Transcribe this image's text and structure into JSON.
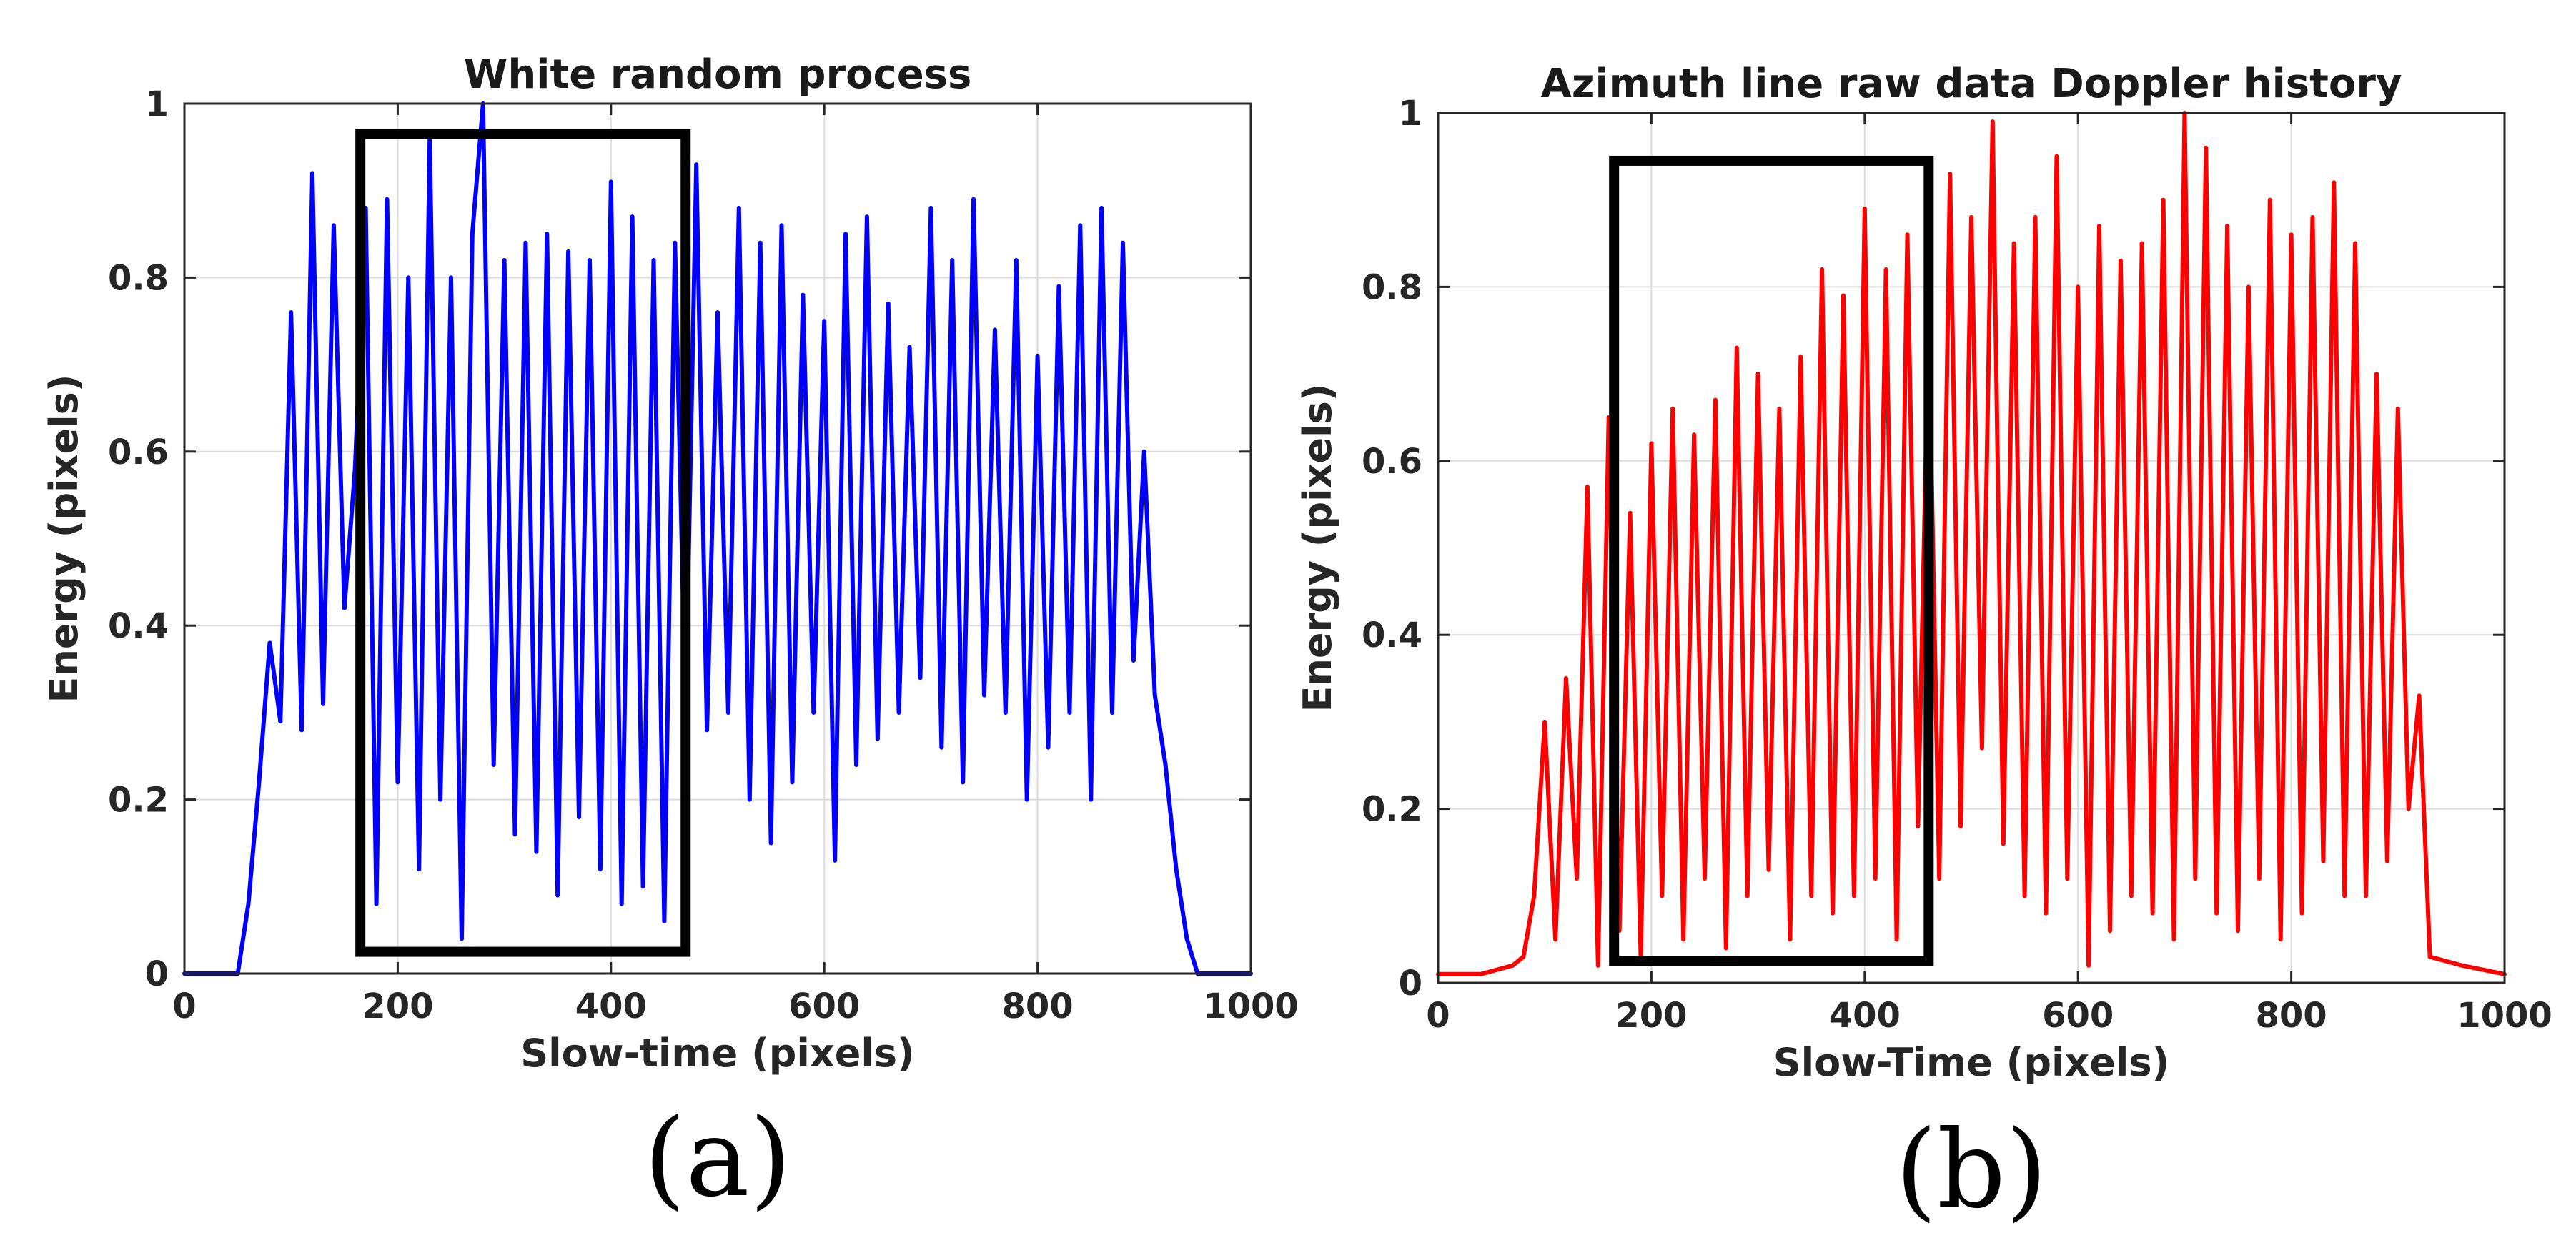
{
  "chart_data": [
    {
      "type": "line",
      "panel_label": "(a)",
      "title": "White random process",
      "xlabel": "Slow-time (pixels)",
      "ylabel": "Energy (pixels)",
      "xlim": [
        0,
        1000
      ],
      "ylim": [
        0,
        1
      ],
      "xticks": [
        0,
        200,
        400,
        600,
        800,
        1000
      ],
      "yticks": [
        0,
        0.2,
        0.4,
        0.6,
        0.8,
        1
      ],
      "ytick_labels": [
        "0",
        "0.2",
        "0.4",
        "0.6",
        "0.8",
        "1"
      ],
      "grid": true,
      "series": [
        {
          "name": "White random process",
          "color": "#0000ff",
          "x": [
            0,
            50,
            60,
            70,
            80,
            90,
            100,
            110,
            120,
            130,
            140,
            150,
            160,
            170,
            180,
            190,
            200,
            210,
            220,
            230,
            240,
            250,
            260,
            270,
            280,
            290,
            300,
            310,
            320,
            330,
            340,
            350,
            360,
            370,
            380,
            390,
            400,
            410,
            420,
            430,
            440,
            450,
            460,
            470,
            480,
            490,
            500,
            510,
            520,
            530,
            540,
            550,
            560,
            570,
            580,
            590,
            600,
            610,
            620,
            630,
            640,
            650,
            660,
            670,
            680,
            690,
            700,
            710,
            720,
            730,
            740,
            750,
            760,
            770,
            780,
            790,
            800,
            810,
            820,
            830,
            840,
            850,
            860,
            870,
            880,
            890,
            900,
            910,
            920,
            930,
            940,
            950,
            1000
          ],
          "y": [
            0,
            0,
            0.08,
            0.22,
            0.38,
            0.29,
            0.76,
            0.28,
            0.92,
            0.31,
            0.86,
            0.42,
            0.58,
            0.88,
            0.08,
            0.89,
            0.22,
            0.8,
            0.12,
            0.96,
            0.2,
            0.8,
            0.04,
            0.85,
            1.0,
            0.24,
            0.82,
            0.16,
            0.84,
            0.14,
            0.85,
            0.09,
            0.83,
            0.18,
            0.82,
            0.12,
            0.91,
            0.08,
            0.87,
            0.1,
            0.82,
            0.06,
            0.84,
            0.3,
            0.93,
            0.28,
            0.76,
            0.3,
            0.88,
            0.2,
            0.84,
            0.15,
            0.86,
            0.22,
            0.78,
            0.3,
            0.75,
            0.13,
            0.85,
            0.24,
            0.87,
            0.27,
            0.77,
            0.3,
            0.72,
            0.34,
            0.88,
            0.26,
            0.82,
            0.22,
            0.89,
            0.32,
            0.74,
            0.3,
            0.82,
            0.2,
            0.71,
            0.26,
            0.79,
            0.3,
            0.86,
            0.2,
            0.88,
            0.3,
            0.84,
            0.36,
            0.6,
            0.32,
            0.24,
            0.12,
            0.04,
            0,
            0
          ]
        }
      ],
      "highlight_box": {
        "x": [
          165,
          470
        ],
        "y": [
          0.025,
          0.965
        ]
      }
    },
    {
      "type": "line",
      "panel_label": "(b)",
      "title": "Azimuth line raw data Doppler history",
      "xlabel": "Slow-Time (pixels)",
      "ylabel": "Energy (pixels)",
      "xlim": [
        0,
        1000
      ],
      "ylim": [
        0,
        1
      ],
      "xticks": [
        0,
        200,
        400,
        600,
        800,
        1000
      ],
      "yticks": [
        0,
        0.2,
        0.4,
        0.6,
        0.8,
        1
      ],
      "ytick_labels": [
        "0",
        "0.2",
        "0.4",
        "0.6",
        "0.8",
        "1"
      ],
      "grid": true,
      "series": [
        {
          "name": "Azimuth line raw data Doppler history",
          "color": "#ff0000",
          "x": [
            0,
            40,
            70,
            80,
            90,
            100,
            110,
            120,
            130,
            140,
            150,
            160,
            170,
            180,
            190,
            200,
            210,
            220,
            230,
            240,
            250,
            260,
            270,
            280,
            290,
            300,
            310,
            320,
            330,
            340,
            350,
            360,
            370,
            380,
            390,
            400,
            410,
            420,
            430,
            440,
            450,
            460,
            470,
            480,
            490,
            500,
            510,
            520,
            530,
            540,
            550,
            560,
            570,
            580,
            590,
            600,
            610,
            620,
            630,
            640,
            650,
            660,
            670,
            680,
            690,
            700,
            710,
            720,
            730,
            740,
            750,
            760,
            770,
            780,
            790,
            800,
            810,
            820,
            830,
            840,
            850,
            860,
            870,
            880,
            890,
            900,
            910,
            920,
            930,
            960,
            1000
          ],
          "y": [
            0.01,
            0.01,
            0.02,
            0.03,
            0.1,
            0.3,
            0.05,
            0.35,
            0.12,
            0.57,
            0.02,
            0.65,
            0.06,
            0.54,
            0.03,
            0.62,
            0.1,
            0.66,
            0.05,
            0.63,
            0.12,
            0.67,
            0.04,
            0.73,
            0.1,
            0.7,
            0.13,
            0.66,
            0.05,
            0.72,
            0.1,
            0.82,
            0.08,
            0.79,
            0.1,
            0.89,
            0.12,
            0.82,
            0.05,
            0.86,
            0.18,
            0.76,
            0.12,
            0.93,
            0.18,
            0.88,
            0.27,
            0.99,
            0.16,
            0.85,
            0.1,
            0.88,
            0.08,
            0.95,
            0.12,
            0.8,
            0.02,
            0.87,
            0.06,
            0.83,
            0.1,
            0.85,
            0.08,
            0.9,
            0.05,
            1.0,
            0.12,
            0.96,
            0.08,
            0.87,
            0.06,
            0.8,
            0.12,
            0.9,
            0.05,
            0.86,
            0.08,
            0.88,
            0.14,
            0.92,
            0.1,
            0.85,
            0.1,
            0.7,
            0.14,
            0.66,
            0.2,
            0.33,
            0.03,
            0.02,
            0.01
          ]
        }
      ],
      "highlight_box": {
        "x": [
          165,
          460
        ],
        "y": [
          0.025,
          0.945
        ]
      }
    }
  ]
}
